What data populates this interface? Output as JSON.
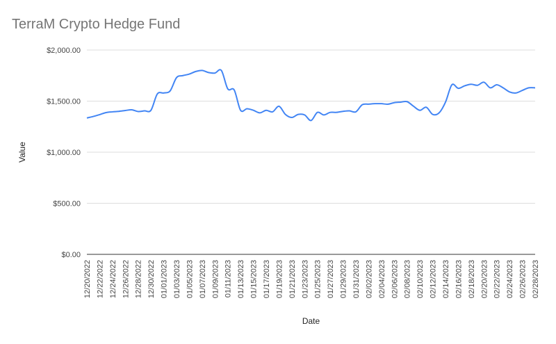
{
  "chart_data": {
    "type": "line",
    "title": "TerraM Crypto Hedge Fund",
    "xlabel": "Date",
    "ylabel": "Value",
    "ylim": [
      0,
      2000
    ],
    "y_ticks": [
      "$0.00",
      "$500.00",
      "$1,000.00",
      "$1,500.00",
      "$2,000.00"
    ],
    "y_tick_values": [
      0,
      500,
      1000,
      1500,
      2000
    ],
    "grid": true,
    "legend": "none",
    "colors": {
      "line": "#4285f4",
      "grid": "#dddddd",
      "axis": "#333333"
    },
    "x_tick_labels": [
      "12/20/2022",
      "12/22/2022",
      "12/24/2022",
      "12/26/2022",
      "12/28/2022",
      "12/30/2022",
      "01/01/2023",
      "01/03/2023",
      "01/05/2023",
      "01/07/2023",
      "01/09/2023",
      "01/11/2023",
      "01/13/2023",
      "01/15/2023",
      "01/17/2023",
      "01/19/2023",
      "01/21/2023",
      "01/23/2023",
      "01/25/2023",
      "01/27/2023",
      "01/29/2023",
      "01/31/2023",
      "02/02/2023",
      "02/04/2023",
      "02/06/2023",
      "02/08/2023",
      "02/10/2023",
      "02/12/2023",
      "02/14/2023",
      "02/16/2023",
      "02/18/2023",
      "02/20/2023",
      "02/22/2023",
      "02/24/2023",
      "02/26/2023",
      "02/28/2023"
    ],
    "x": [
      "12/20/2022",
      "12/21/2022",
      "12/22/2022",
      "12/23/2022",
      "12/24/2022",
      "12/25/2022",
      "12/26/2022",
      "12/27/2022",
      "12/28/2022",
      "12/29/2022",
      "12/30/2022",
      "12/31/2022",
      "01/01/2023",
      "01/02/2023",
      "01/03/2023",
      "01/04/2023",
      "01/05/2023",
      "01/06/2023",
      "01/07/2023",
      "01/08/2023",
      "01/09/2023",
      "01/10/2023",
      "01/11/2023",
      "01/12/2023",
      "01/13/2023",
      "01/14/2023",
      "01/15/2023",
      "01/16/2023",
      "01/17/2023",
      "01/18/2023",
      "01/19/2023",
      "01/20/2023",
      "01/21/2023",
      "01/22/2023",
      "01/23/2023",
      "01/24/2023",
      "01/25/2023",
      "01/26/2023",
      "01/27/2023",
      "01/28/2023",
      "01/29/2023",
      "01/30/2023",
      "01/31/2023",
      "02/01/2023",
      "02/02/2023",
      "02/03/2023",
      "02/04/2023",
      "02/05/2023",
      "02/06/2023",
      "02/07/2023",
      "02/08/2023",
      "02/09/2023",
      "02/10/2023",
      "02/11/2023",
      "02/12/2023",
      "02/13/2023",
      "02/14/2023",
      "02/15/2023",
      "02/16/2023",
      "02/17/2023",
      "02/18/2023",
      "02/19/2023",
      "02/20/2023",
      "02/21/2023",
      "02/22/2023",
      "02/23/2023",
      "02/24/2023",
      "02/25/2023",
      "02/26/2023",
      "02/27/2023",
      "02/28/2023"
    ],
    "series": [
      {
        "values": [
          1335,
          1350,
          1368,
          1388,
          1395,
          1400,
          1408,
          1415,
          1398,
          1405,
          1410,
          1570,
          1580,
          1600,
          1730,
          1750,
          1765,
          1790,
          1800,
          1780,
          1775,
          1800,
          1620,
          1610,
          1410,
          1425,
          1410,
          1385,
          1410,
          1395,
          1450,
          1370,
          1340,
          1370,
          1365,
          1310,
          1390,
          1365,
          1390,
          1390,
          1400,
          1405,
          1395,
          1465,
          1470,
          1475,
          1475,
          1470,
          1485,
          1490,
          1495,
          1450,
          1410,
          1440,
          1370,
          1385,
          1490,
          1660,
          1625,
          1650,
          1665,
          1655,
          1685,
          1630,
          1660,
          1630,
          1590,
          1580,
          1605,
          1630,
          1630
        ]
      }
    ]
  }
}
